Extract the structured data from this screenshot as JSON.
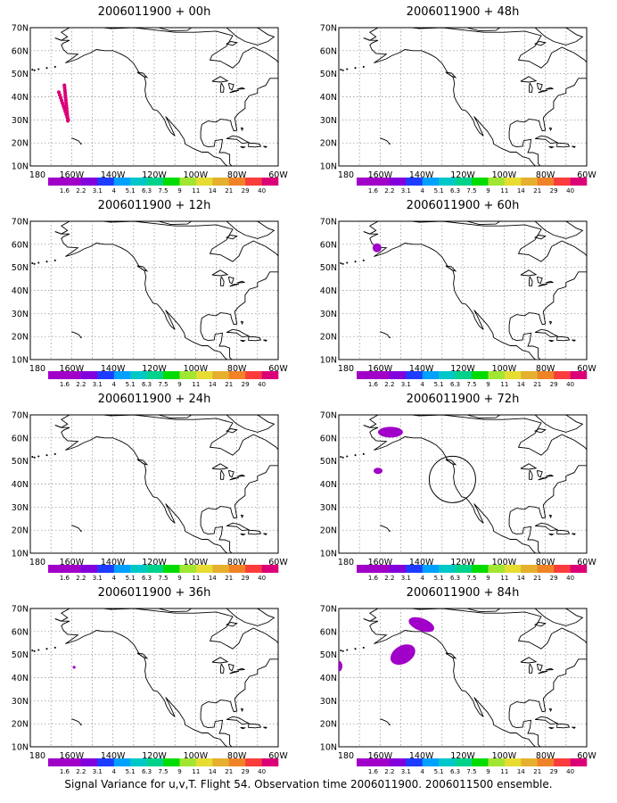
{
  "caption": "Signal Variance for u,v,T. Flight 54. Observation time 2006011900. 2006011500 ensemble.",
  "lat_labels": [
    "10N",
    "20N",
    "30N",
    "40N",
    "50N",
    "60N",
    "70N"
  ],
  "lon_labels": [
    "180",
    "160W",
    "140W",
    "120W",
    "100W",
    "80W",
    "60W"
  ],
  "colorbar": {
    "labels": [
      "1.6",
      "2.2",
      "3.1",
      "4",
      "5.1",
      "6.3",
      "7.5",
      "9",
      "11",
      "14",
      "21",
      "29",
      "40"
    ],
    "colors": [
      "#a000c8",
      "#8200dc",
      "#1e3cff",
      "#00a0ff",
      "#00c8c8",
      "#00d28c",
      "#00dc00",
      "#a0e632",
      "#e6dc32",
      "#e6af2d",
      "#f08228",
      "#fa3c3c",
      "#dc0078"
    ]
  },
  "panels": [
    {
      "title": "2006011900 + 00h",
      "col": 0,
      "row": 0
    },
    {
      "title": "2006011900 + 48h",
      "col": 1,
      "row": 0
    },
    {
      "title": "2006011900 + 12h",
      "col": 0,
      "row": 1
    },
    {
      "title": "2006011900 + 60h",
      "col": 1,
      "row": 1
    },
    {
      "title": "2006011900 + 24h",
      "col": 0,
      "row": 2
    },
    {
      "title": "2006011900 + 72h",
      "col": 1,
      "row": 2
    },
    {
      "title": "2006011900 + 36h",
      "col": 0,
      "row": 3
    },
    {
      "title": "2006011900 + 84h",
      "col": 1,
      "row": 3
    }
  ]
}
